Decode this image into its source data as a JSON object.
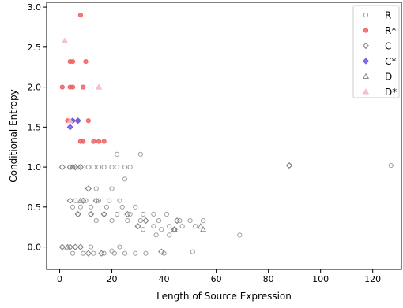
{
  "chart_data": {
    "type": "scatter",
    "xlabel": "Length of Source Expression",
    "ylabel": "Conditional Entropy",
    "xlim": [
      -5,
      131
    ],
    "ylim": [
      -0.28,
      3.06
    ],
    "x_ticks": [
      "0",
      "20",
      "40",
      "60",
      "80",
      "100",
      "120"
    ],
    "y_ticks": [
      "0.0",
      "0.5",
      "1.0",
      "1.5",
      "2.0",
      "2.5",
      "3.0"
    ],
    "legend_position": "top-right",
    "series": [
      {
        "name": "R",
        "marker": "circle-open",
        "color": "#9e9e9e",
        "points": [
          [
            5,
            1.0
          ],
          [
            7,
            1.0
          ],
          [
            9,
            1.0
          ],
          [
            11,
            1.0
          ],
          [
            13,
            1.0
          ],
          [
            15,
            1.0
          ],
          [
            17,
            1.0
          ],
          [
            20,
            1.0
          ],
          [
            22,
            1.0
          ],
          [
            25,
            1.0
          ],
          [
            27,
            1.0
          ],
          [
            88,
            1.02
          ],
          [
            127,
            1.02
          ],
          [
            22,
            1.16
          ],
          [
            31,
            1.16
          ],
          [
            25,
            0.85
          ],
          [
            14,
            0.73
          ],
          [
            20,
            0.73
          ],
          [
            6,
            0.58
          ],
          [
            10,
            0.58
          ],
          [
            15,
            0.58
          ],
          [
            19,
            0.58
          ],
          [
            23,
            0.58
          ],
          [
            5,
            0.5
          ],
          [
            8,
            0.5
          ],
          [
            12,
            0.5
          ],
          [
            18,
            0.5
          ],
          [
            24,
            0.5
          ],
          [
            29,
            0.5
          ],
          [
            7,
            0.41
          ],
          [
            12,
            0.41
          ],
          [
            17,
            0.41
          ],
          [
            22,
            0.41
          ],
          [
            27,
            0.41
          ],
          [
            32,
            0.41
          ],
          [
            36,
            0.41
          ],
          [
            41,
            0.41
          ],
          [
            14,
            0.33
          ],
          [
            20,
            0.33
          ],
          [
            26,
            0.33
          ],
          [
            31,
            0.33
          ],
          [
            38,
            0.33
          ],
          [
            46,
            0.33
          ],
          [
            50,
            0.33
          ],
          [
            55,
            0.33
          ],
          [
            30,
            0.26
          ],
          [
            36,
            0.26
          ],
          [
            42,
            0.26
          ],
          [
            47,
            0.26
          ],
          [
            52,
            0.26
          ],
          [
            32,
            0.22
          ],
          [
            39,
            0.22
          ],
          [
            44,
            0.22
          ],
          [
            69,
            0.15
          ],
          [
            37,
            0.15
          ],
          [
            42,
            0.15
          ],
          [
            5,
            -0.08
          ],
          [
            9,
            -0.08
          ],
          [
            13,
            -0.08
          ],
          [
            17,
            -0.08
          ],
          [
            21,
            -0.08
          ],
          [
            25,
            -0.08
          ],
          [
            29,
            -0.08
          ],
          [
            33,
            -0.08
          ],
          [
            40,
            -0.08
          ],
          [
            51,
            -0.06
          ],
          [
            23,
            0.0
          ],
          [
            12,
            0.0
          ],
          [
            20,
            -0.05
          ]
        ]
      },
      {
        "name": "R*",
        "marker": "circle-filled",
        "color": "#f06464",
        "points": [
          [
            8,
            2.9
          ],
          [
            4,
            2.32
          ],
          [
            5,
            2.32
          ],
          [
            10,
            2.32
          ],
          [
            1,
            2.0
          ],
          [
            4,
            2.0
          ],
          [
            5,
            2.0
          ],
          [
            9,
            2.0
          ],
          [
            3,
            1.58
          ],
          [
            5,
            1.58
          ],
          [
            7,
            1.58
          ],
          [
            11,
            1.58
          ],
          [
            8,
            1.32
          ],
          [
            9,
            1.32
          ],
          [
            13,
            1.32
          ],
          [
            15,
            1.32
          ],
          [
            17,
            1.32
          ]
        ]
      },
      {
        "name": "C",
        "marker": "diamond-open",
        "color": "#7d7d7d",
        "points": [
          [
            1,
            1.0
          ],
          [
            4,
            1.0
          ],
          [
            6,
            1.0
          ],
          [
            8,
            1.0
          ],
          [
            11,
            0.73
          ],
          [
            4,
            0.58
          ],
          [
            9,
            0.58
          ],
          [
            14,
            0.58
          ],
          [
            7,
            0.41
          ],
          [
            12,
            0.41
          ],
          [
            17,
            0.41
          ],
          [
            26,
            0.41
          ],
          [
            33,
            0.33
          ],
          [
            45,
            0.33
          ],
          [
            30,
            0.26
          ],
          [
            44,
            0.22
          ],
          [
            1,
            0.0
          ],
          [
            4,
            0.0
          ],
          [
            6,
            0.0
          ],
          [
            8,
            0.0
          ],
          [
            11,
            -0.08
          ],
          [
            16,
            -0.08
          ],
          [
            39,
            -0.06
          ],
          [
            88,
            1.02
          ]
        ]
      },
      {
        "name": "C*",
        "marker": "diamond-filled",
        "color": "#6a5ce0",
        "points": [
          [
            4,
            1.5
          ],
          [
            5,
            1.58
          ],
          [
            7,
            1.58
          ]
        ]
      },
      {
        "name": "D",
        "marker": "triangle-open",
        "color": "#8a8a8a",
        "points": [
          [
            55,
            0.22
          ],
          [
            54,
            0.26
          ],
          [
            44,
            0.22
          ],
          [
            5,
            1.0
          ],
          [
            8,
            0.58
          ],
          [
            3,
            0.0
          ]
        ]
      },
      {
        "name": "D*",
        "marker": "triangle-filled",
        "color": "#f5b8c6",
        "points": [
          [
            2,
            2.58
          ],
          [
            15,
            2.0
          ],
          [
            4,
            1.58
          ]
        ]
      }
    ]
  }
}
